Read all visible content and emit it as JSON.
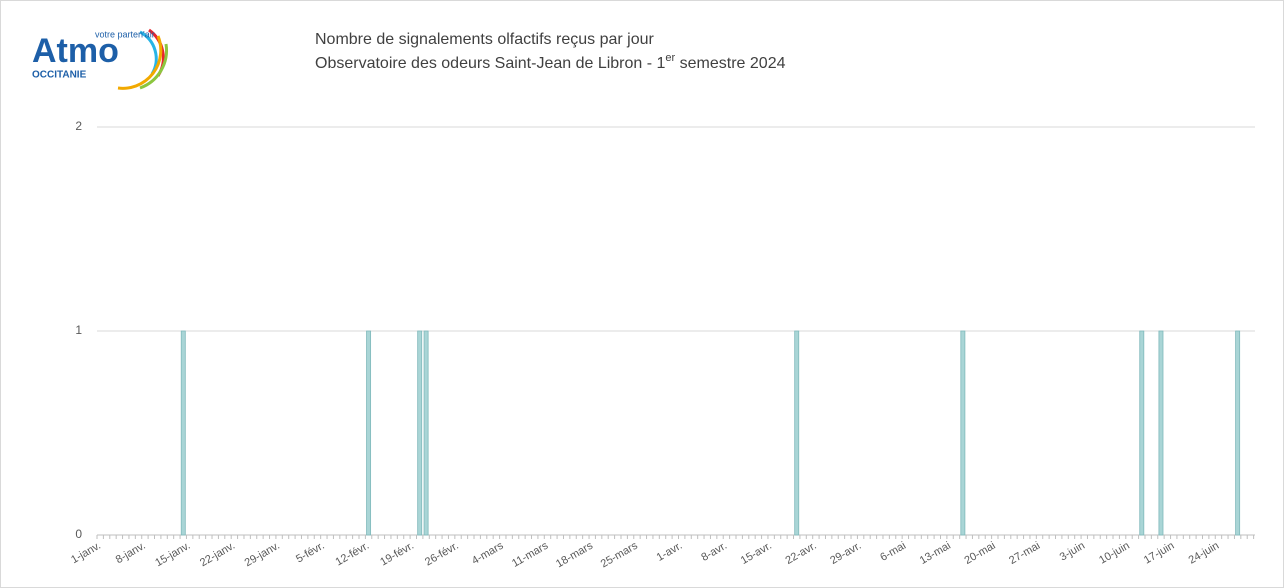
{
  "logo": {
    "name": "Atmo",
    "tagline": "votre parten'air",
    "region": "OCCITANIE"
  },
  "chart_data": {
    "type": "bar",
    "title": "Nombre de signalements olfactifs reçus par jour",
    "subtitle": [
      "Observatoire des odeurs Saint-Jean de Libron -  1",
      "er",
      " semestre 2024"
    ],
    "categories": [
      "1-janv.",
      null,
      null,
      null,
      null,
      null,
      null,
      "8-janv.",
      null,
      null,
      null,
      null,
      null,
      null,
      "15-janv.",
      null,
      null,
      null,
      null,
      null,
      null,
      "22-janv.",
      null,
      null,
      null,
      null,
      null,
      null,
      "29-janv.",
      null,
      null,
      null,
      null,
      null,
      null,
      "5-févr.",
      null,
      null,
      null,
      null,
      null,
      null,
      "12-févr.",
      null,
      null,
      null,
      null,
      null,
      null,
      "19-févr.",
      null,
      null,
      null,
      null,
      null,
      null,
      "26-févr.",
      null,
      null,
      null,
      null,
      null,
      null,
      "4-mars",
      null,
      null,
      null,
      null,
      null,
      null,
      "11-mars",
      null,
      null,
      null,
      null,
      null,
      null,
      "18-mars",
      null,
      null,
      null,
      null,
      null,
      null,
      "25-mars",
      null,
      null,
      null,
      null,
      null,
      null,
      "1-avr.",
      null,
      null,
      null,
      null,
      null,
      null,
      "8-avr.",
      null,
      null,
      null,
      null,
      null,
      null,
      "15-avr.",
      null,
      null,
      null,
      null,
      null,
      null,
      "22-avr.",
      null,
      null,
      null,
      null,
      null,
      null,
      "29-avr.",
      null,
      null,
      null,
      null,
      null,
      null,
      "6-mai",
      null,
      null,
      null,
      null,
      null,
      null,
      "13-mai",
      null,
      null,
      null,
      null,
      null,
      null,
      "20-mai",
      null,
      null,
      null,
      null,
      null,
      null,
      "27-mai",
      null,
      null,
      null,
      null,
      null,
      null,
      "3-juin",
      null,
      null,
      null,
      null,
      null,
      null,
      "10-juin",
      null,
      null,
      null,
      null,
      null,
      null,
      "17-juin",
      null,
      null,
      null,
      null,
      null,
      null,
      "24-juin",
      null,
      null,
      null,
      null,
      null,
      null
    ],
    "values": [
      0,
      0,
      0,
      0,
      0,
      0,
      0,
      0,
      0,
      0,
      0,
      0,
      0,
      1,
      0,
      0,
      0,
      0,
      0,
      0,
      0,
      0,
      0,
      0,
      0,
      0,
      0,
      0,
      0,
      0,
      0,
      0,
      0,
      0,
      0,
      0,
      0,
      0,
      0,
      0,
      0,
      0,
      1,
      0,
      0,
      0,
      0,
      0,
      0,
      0,
      1,
      1,
      0,
      0,
      0,
      0,
      0,
      0,
      0,
      0,
      0,
      0,
      0,
      0,
      0,
      0,
      0,
      0,
      0,
      0,
      0,
      0,
      0,
      0,
      0,
      0,
      0,
      0,
      0,
      0,
      0,
      0,
      0,
      0,
      0,
      0,
      0,
      0,
      0,
      0,
      0,
      0,
      0,
      0,
      0,
      0,
      0,
      0,
      0,
      0,
      0,
      0,
      0,
      0,
      0,
      0,
      0,
      0,
      0,
      1,
      0,
      0,
      0,
      0,
      0,
      0,
      0,
      0,
      0,
      0,
      0,
      0,
      0,
      0,
      0,
      0,
      0,
      0,
      0,
      0,
      0,
      0,
      0,
      0,
      0,
      1,
      0,
      0,
      0,
      0,
      0,
      0,
      0,
      0,
      0,
      0,
      0,
      0,
      0,
      0,
      0,
      0,
      0,
      0,
      0,
      0,
      0,
      0,
      0,
      0,
      0,
      0,
      0,
      1,
      0,
      0,
      1,
      0,
      0,
      0,
      0,
      0,
      0,
      0,
      0,
      0,
      0,
      0,
      1,
      0,
      0,
      0
    ],
    "color": "#a9d5d6",
    "ylim": [
      0,
      2
    ],
    "yticks": [
      0,
      1,
      2
    ],
    "grid": true
  }
}
